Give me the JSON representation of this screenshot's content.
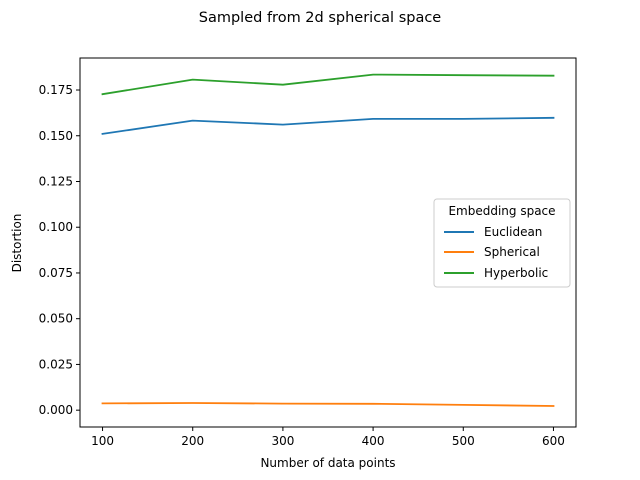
{
  "chart_data": {
    "type": "line",
    "title": "Sampled from 2d spherical space",
    "xlabel": "Number of data points",
    "ylabel": "Distortion",
    "x": [
      100,
      200,
      300,
      400,
      500,
      600
    ],
    "xticks": [
      "100",
      "200",
      "300",
      "400",
      "500",
      "600"
    ],
    "yticks": [
      "0.000",
      "0.025",
      "0.050",
      "0.075",
      "0.100",
      "0.125",
      "0.150",
      "0.175"
    ],
    "xlim": [
      75,
      625
    ],
    "ylim": [
      -0.0092,
      0.1925
    ],
    "grid": false,
    "legend": {
      "title": "Embedding space",
      "placement": "center-right"
    },
    "series": [
      {
        "name": "Euclidean",
        "color": "#1f77b4",
        "values": [
          0.151,
          0.1583,
          0.1561,
          0.1592,
          0.1592,
          0.1598
        ]
      },
      {
        "name": "Spherical",
        "color": "#ff7f0e",
        "values": [
          0.0037,
          0.0039,
          0.0036,
          0.0035,
          0.0029,
          0.0023
        ]
      },
      {
        "name": "Hyperbolic",
        "color": "#2ca02c",
        "values": [
          0.1727,
          0.1807,
          0.1779,
          0.1834,
          0.1831,
          0.1828
        ]
      }
    ]
  }
}
